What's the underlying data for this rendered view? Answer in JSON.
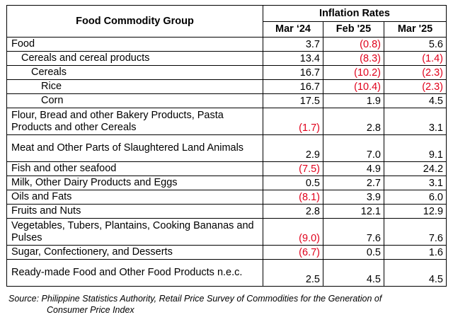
{
  "table": {
    "group_header": "Food Commodity Group",
    "rates_header": "Inflation Rates",
    "columns": [
      "Mar ‘24",
      "Feb '25",
      "Mar '25"
    ],
    "rows": [
      {
        "label": "Food",
        "indent": 0,
        "tall": false,
        "values": [
          "3.7",
          "(0.8)",
          "5.6"
        ]
      },
      {
        "label": "Cereals and cereal products",
        "indent": 1,
        "tall": false,
        "values": [
          "13.4",
          "(8.3)",
          "(1.4)"
        ]
      },
      {
        "label": "Cereals",
        "indent": 2,
        "tall": false,
        "values": [
          "16.7",
          "(10.2)",
          "(2.3)"
        ]
      },
      {
        "label": "Rice",
        "indent": 3,
        "tall": false,
        "values": [
          "16.7",
          "(10.4)",
          "(2.3)"
        ]
      },
      {
        "label": "Corn",
        "indent": 3,
        "tall": false,
        "values": [
          "17.5",
          "1.9",
          "4.5"
        ]
      },
      {
        "label": "Flour, Bread and other Bakery Products, Pasta Products and other Cereals",
        "indent": 0,
        "tall": true,
        "values": [
          "(1.7)",
          "2.8",
          "3.1"
        ]
      },
      {
        "label": "Meat and Other Parts of Slaughtered Land Animals",
        "indent": 0,
        "tall": true,
        "values": [
          "2.9",
          "7.0",
          "9.1"
        ]
      },
      {
        "label": "Fish and other seafood",
        "indent": 0,
        "tall": false,
        "values": [
          "(7.5)",
          "4.9",
          "24.2"
        ]
      },
      {
        "label": "Milk, Other Dairy Products and Eggs",
        "indent": 0,
        "tall": false,
        "values": [
          "0.5",
          "2.7",
          "3.1"
        ]
      },
      {
        "label": "Oils and Fats",
        "indent": 0,
        "tall": false,
        "values": [
          "(8.1)",
          "3.9",
          "6.0"
        ]
      },
      {
        "label": "Fruits and Nuts",
        "indent": 0,
        "tall": false,
        "values": [
          "2.8",
          "12.1",
          "12.9"
        ]
      },
      {
        "label": "Vegetables, Tubers, Plantains, Cooking Bananas and Pulses",
        "indent": 0,
        "tall": true,
        "values": [
          "(9.0)",
          "7.6",
          "7.6"
        ]
      },
      {
        "label": "Sugar, Confectionery, and Desserts",
        "indent": 0,
        "tall": false,
        "values": [
          "(6.7)",
          "0.5",
          "1.6"
        ]
      },
      {
        "label": "Ready-made Food and Other Food Products n.e.c.",
        "indent": 0,
        "tall": true,
        "values": [
          "2.5",
          "4.5",
          "4.5"
        ]
      }
    ]
  },
  "source": {
    "line1": "Source: Philippine Statistics Authority, Retail Price Survey of Commodities for the Generation of",
    "line2": "Consumer Price Index"
  },
  "colors": {
    "negative": "#e0001b",
    "text": "#000000",
    "border": "#000000"
  }
}
